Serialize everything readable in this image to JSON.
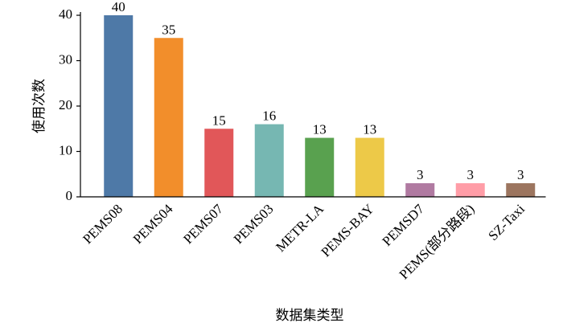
{
  "chart_data": {
    "type": "bar",
    "categories": [
      "PEMS08",
      "PEMS04",
      "PEMS07",
      "PEMS03",
      "METR-LA",
      "PEMS-BAY",
      "PEMSD7",
      "PEMS(部分路段)",
      "SZ-Taxi"
    ],
    "values": [
      40,
      35,
      15,
      16,
      13,
      13,
      3,
      3,
      3
    ],
    "colors": [
      "#4e79a7",
      "#f28e2b",
      "#e15759",
      "#76b7b2",
      "#59a14f",
      "#edc948",
      "#b07aa1",
      "#ff9da7",
      "#9c755f"
    ],
    "ylim": [
      0,
      40
    ],
    "yticks": [
      0,
      10,
      20,
      30,
      40
    ],
    "xlabel": "数据集类型",
    "ylabel": "使用次数"
  }
}
